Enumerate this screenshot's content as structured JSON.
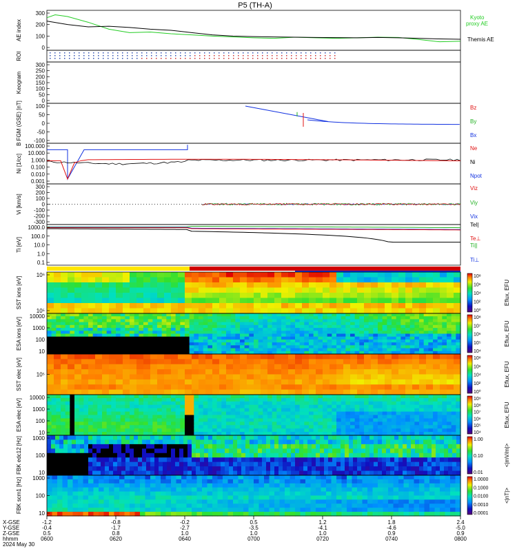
{
  "title": "P5 (TH-A)",
  "date_label": "2024 May 30",
  "colors": {
    "ae_kyoto": "#22cc22",
    "ae_themis": "#000000",
    "red": "#e01010",
    "green": "#20b020",
    "blue": "#1030e0"
  },
  "chart_data": [
    {
      "type": "line",
      "id": "ae",
      "ylabel": "AE index",
      "ylim": [
        0,
        300
      ],
      "yticks": [
        "300",
        "200",
        "100",
        "0"
      ],
      "series": [
        {
          "name": "Kyoto proxy AE",
          "color": "#22cc22",
          "x": [
            0,
            0.02,
            0.05,
            0.1,
            0.15,
            0.2,
            0.25,
            0.3,
            0.35,
            0.4,
            0.45,
            0.5,
            0.55,
            0.6,
            0.65,
            0.7,
            0.75,
            0.8,
            0.85,
            0.9,
            0.95,
            1.0
          ],
          "y": [
            260,
            285,
            270,
            220,
            160,
            130,
            135,
            120,
            110,
            100,
            92,
            85,
            80,
            90,
            85,
            80,
            85,
            90,
            88,
            70,
            50,
            55
          ]
        },
        {
          "name": "Themis AE",
          "color": "#000000",
          "x": [
            0,
            0.05,
            0.1,
            0.15,
            0.2,
            0.25,
            0.3,
            0.35,
            0.4,
            0.45,
            0.5,
            0.55,
            0.6,
            0.65,
            0.7,
            0.75,
            0.8,
            0.85,
            0.9,
            0.95,
            1.0
          ],
          "y": [
            230,
            200,
            180,
            185,
            175,
            160,
            150,
            130,
            110,
            100,
            95,
            92,
            90,
            88,
            86,
            85,
            88,
            85,
            80,
            75,
            72
          ]
        }
      ]
    },
    {
      "type": "table",
      "id": "roi",
      "ylabel": "ROI",
      "yticks": []
    },
    {
      "type": "heatmap",
      "id": "keogram",
      "ylabel": "Keogram",
      "yticks": [
        "300",
        "250",
        "200",
        "150",
        "100",
        "50",
        "0"
      ]
    },
    {
      "type": "line",
      "id": "bfgm",
      "ylabel": "B FGM (GSE) [nT]",
      "ylim": [
        -100,
        100
      ],
      "yticks": [
        "100",
        "50",
        "0",
        "-50",
        "-100"
      ],
      "series": [
        {
          "name": "Bz",
          "color": "#e01010"
        },
        {
          "name": "By",
          "color": "#20b020"
        },
        {
          "name": "Bx",
          "color": "#1030e0"
        }
      ]
    },
    {
      "type": "line",
      "id": "ni",
      "ylabel": "Ni [1/cc]",
      "scale": "log",
      "yticks": [
        "100.000",
        "10.000",
        "1.000",
        "0.100",
        "0.010",
        "0.001"
      ],
      "series": [
        {
          "name": "Ne",
          "color": "#e01010"
        },
        {
          "name": "Ni",
          "color": "#000000"
        },
        {
          "name": "Npot",
          "color": "#1030e0"
        }
      ]
    },
    {
      "type": "line",
      "id": "vi",
      "ylabel": "Vi [km/s]",
      "ylim": [
        -300,
        300
      ],
      "yticks": [
        "300",
        "200",
        "100",
        "0",
        "-100",
        "-200",
        "-300"
      ],
      "series": [
        {
          "name": "Viz",
          "color": "#e01010"
        },
        {
          "name": "Viy",
          "color": "#20b020"
        },
        {
          "name": "Vix",
          "color": "#1030e0"
        }
      ]
    },
    {
      "type": "line",
      "id": "ti",
      "ylabel": "Ti [eV]",
      "scale": "log",
      "yticks": [
        "1000.0",
        "100.0",
        "10.0",
        "1.0",
        "0.1"
      ],
      "series": [
        {
          "name": "Tel|",
          "color": "#000000"
        },
        {
          "name": "Te⊥",
          "color": "#e01010"
        },
        {
          "name": "Ti||",
          "color": "#20b020"
        },
        {
          "name": "Ti⊥",
          "color": "#1030e0"
        }
      ]
    },
    {
      "type": "heatmap",
      "id": "sst_i",
      "ylabel": "SST ions [eV]",
      "yticks": [
        "10⁶",
        "10⁵"
      ],
      "colorbar": {
        "label": "Eflux, EFU",
        "ticks": [
          "10⁸",
          "10⁶",
          "10⁴",
          "10²",
          "10⁰"
        ]
      }
    },
    {
      "type": "heatmap",
      "id": "esa_i",
      "ylabel": "ESA ions [eV]",
      "yticks": [
        "10000",
        "1000",
        "100",
        "10"
      ],
      "colorbar": {
        "label": "Eflux, EFU",
        "ticks": [
          "10⁸",
          "10⁷",
          "10⁶",
          "10⁵",
          "10⁴"
        ]
      }
    },
    {
      "type": "heatmap",
      "id": "sst_e",
      "ylabel": "SST elec [eV]",
      "yticks": [
        "10⁵"
      ],
      "colorbar": {
        "label": "Eflux, EFU",
        "ticks": [
          "10⁸",
          "10⁶",
          "10⁴",
          "10²",
          "10⁰"
        ]
      }
    },
    {
      "type": "heatmap",
      "id": "esa_e",
      "ylabel": "ESA elec [eV]",
      "yticks": [
        "10000",
        "1000",
        "100",
        "10"
      ],
      "colorbar": {
        "label": "Eflux, EFU",
        "ticks": [
          "10⁹",
          "10⁸",
          "10⁷",
          "10⁶",
          "10⁵",
          "10⁴"
        ]
      }
    },
    {
      "type": "heatmap",
      "id": "fbk_e",
      "ylabel": "FBK edc12 [Hz]",
      "yticks": [
        "1000",
        "100",
        "10"
      ],
      "colorbar": {
        "label": "<|mV/m|>",
        "ticks": [
          "1.00",
          "0.10",
          "0.01"
        ]
      }
    },
    {
      "type": "heatmap",
      "id": "fbk_b",
      "ylabel": "FBK scm1 [Hz]",
      "yticks": [
        "1000",
        "100",
        "10"
      ],
      "colorbar": {
        "label": "<|nT|>",
        "ticks": [
          "1.0000",
          "0.1000",
          "0.0100",
          "0.0010",
          "0.0001"
        ]
      }
    }
  ],
  "axis": {
    "row_labels": [
      "X-GSE",
      "Y-GSE",
      "Z-GSE",
      "hhmm",
      "2024 May 30"
    ],
    "columns": [
      {
        "x": "-1.2",
        "y": "-0.4",
        "z": "0.5",
        "t": "0600"
      },
      {
        "x": "-0.8",
        "y": "-1.7",
        "z": "0.8",
        "t": "0620"
      },
      {
        "x": "-0.2",
        "y": "-2.7",
        "z": "1.0",
        "t": "0640"
      },
      {
        "x": "0.5",
        "y": "-3.5",
        "z": "1.0",
        "t": "0700"
      },
      {
        "x": "1.2",
        "y": "-4.1",
        "z": "1.0",
        "t": "0720"
      },
      {
        "x": "1.8",
        "y": "-4.6",
        "z": "0.9",
        "t": "0740"
      },
      {
        "x": "2.4",
        "y": "-5.0",
        "z": "0.9",
        "t": "0800"
      }
    ]
  },
  "legend_labels": {
    "kyoto": "Kyoto proxy AE",
    "themis": "Themis AE",
    "bz": "Bz",
    "by": "By",
    "bx": "Bx",
    "ne": "Ne",
    "ni": "Ni",
    "npot": "Npot",
    "viz": "Viz",
    "viy": "Viy",
    "vix": "Vix",
    "tel": "Tel|",
    "teperp": "Te⊥",
    "till": "Ti||",
    "tiperp": "Ti⊥"
  }
}
